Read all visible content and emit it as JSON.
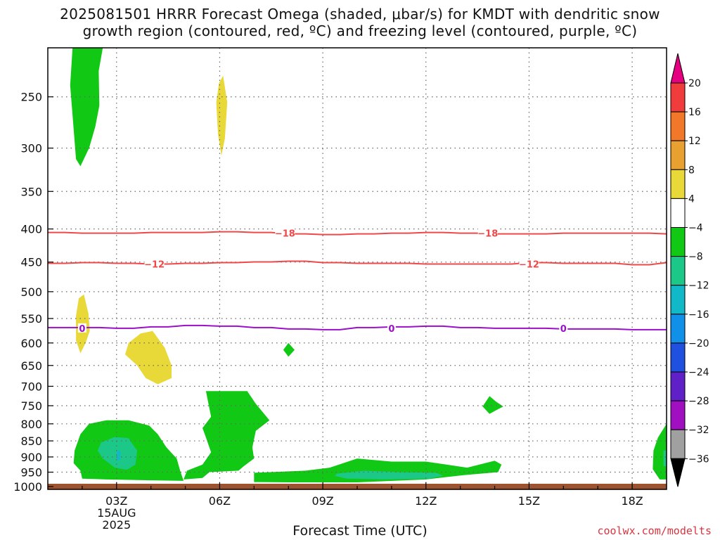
{
  "title": {
    "line1": "2025081501 HRRR Forecast Omega (shaded, μbar/s) for KMDT with dendritic snow",
    "line2": "growth region (contoured, red, ºC) and freezing level (contoured, purple, ºC)"
  },
  "xlabel": "Forecast Time (UTC)",
  "credit": "coolwx.com/modelts",
  "colors": {
    "dendritic": "#f04848",
    "freezing": "#9a10c8",
    "ground": "#a0522d",
    "grid": "#666666"
  },
  "chart_data": {
    "type": "time-height cross section",
    "x": {
      "ticks": [
        "03Z",
        "06Z",
        "09Z",
        "12Z",
        "15Z",
        "18Z"
      ],
      "tick_hours": [
        3,
        6,
        9,
        12,
        15,
        18
      ],
      "date_label": [
        "15AUG",
        "2025"
      ],
      "range_hours": [
        1,
        19
      ]
    },
    "y": {
      "scale": "log-pressure",
      "inverted": true,
      "ticks": [
        250,
        300,
        350,
        400,
        450,
        500,
        550,
        600,
        650,
        700,
        750,
        800,
        850,
        900,
        950,
        1000
      ],
      "range": [
        210,
        1010
      ]
    },
    "grid": true,
    "colorbar": {
      "labels": [
        "20",
        "16",
        "12",
        "8",
        "4",
        "−4",
        "−8",
        "−12",
        "−16",
        "−20",
        "−24",
        "−28",
        "−32",
        "−36"
      ],
      "colors": [
        "#e4007e",
        "#f03c3c",
        "#f07828",
        "#e8a030",
        "#e8d838",
        "#ffffff",
        "#11c814",
        "#1cc888",
        "#10b8c8",
        "#1090e8",
        "#2050e0",
        "#6020c8",
        "#a010c0",
        "#a0a0a0",
        "#000000"
      ]
    },
    "contours": [
      {
        "label": "-18",
        "color": "#f04848",
        "level_hpa": 405,
        "label_hours": [
          7.9,
          13.8
        ]
      },
      {
        "label": "-12",
        "color": "#f04848",
        "level_hpa": 452,
        "label_hours": [
          4.1,
          15.0
        ]
      },
      {
        "label": "0",
        "color": "#9a10c8",
        "level_hpa": 568,
        "label_hours": [
          2.0,
          11.0,
          16.0
        ]
      }
    ],
    "shaded_regions": [
      {
        "value": "-4 to -8",
        "color": "#11c814",
        "hours": [
          1.6,
          2.6
        ],
        "pressure": [
          210,
          320
        ]
      },
      {
        "value": "4 to 8",
        "color": "#e8d838",
        "hours": [
          5.9,
          6.2
        ],
        "pressure": [
          235,
          310
        ]
      },
      {
        "value": "4 to 8",
        "color": "#e8d838",
        "hours": [
          1.8,
          2.2
        ],
        "pressure": [
          510,
          625
        ]
      },
      {
        "value": "4 to 8",
        "color": "#e8d838",
        "hours": [
          3.3,
          4.6
        ],
        "pressure": [
          585,
          695
        ]
      },
      {
        "value": "-4 to -8",
        "color": "#11c814",
        "hours": [
          7.8,
          8.2
        ],
        "pressure": [
          600,
          630
        ]
      },
      {
        "value": "-4 to -8",
        "color": "#11c814",
        "hours": [
          13.6,
          14.3
        ],
        "pressure": [
          725,
          775
        ]
      },
      {
        "value": "-4 to -8",
        "color": "#11c814",
        "hours": [
          1.7,
          4.9
        ],
        "pressure": [
          790,
          985
        ]
      },
      {
        "value": "-8 to -12",
        "color": "#1cc888",
        "hours": [
          2.5,
          3.6
        ],
        "pressure": [
          835,
          940
        ]
      },
      {
        "value": "-4 to -8",
        "color": "#11c814",
        "hours": [
          5.0,
          7.3
        ],
        "pressure": [
          710,
          960
        ]
      },
      {
        "value": "-4 to -8",
        "color": "#11c814",
        "hours": [
          4.9,
          14.1
        ],
        "pressure": [
          900,
          985
        ]
      },
      {
        "value": "-8 to -12",
        "color": "#1cc888",
        "hours": [
          9.4,
          12.5
        ],
        "pressure": [
          945,
          975
        ]
      },
      {
        "value": "-4 to -8",
        "color": "#11c814",
        "hours": [
          18.6,
          19
        ],
        "pressure": [
          800,
          975
        ]
      }
    ]
  }
}
